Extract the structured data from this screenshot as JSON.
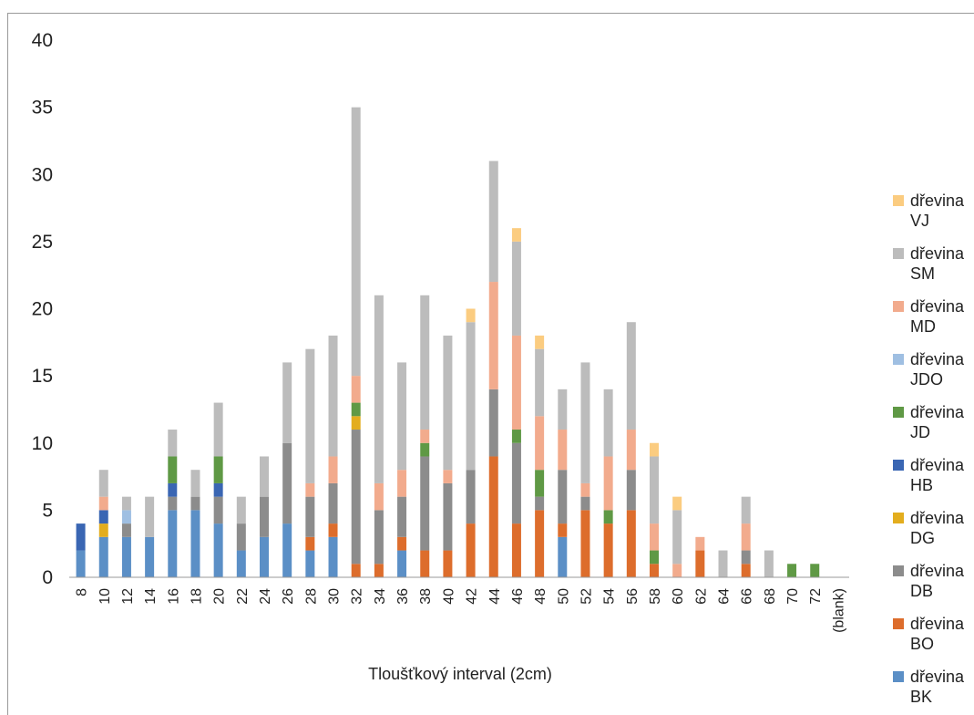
{
  "chart_data": {
    "type": "bar",
    "stacked": true,
    "title": "",
    "xlabel": "Tloušťkový interval (2cm)",
    "ylabel": "",
    "ylim": [
      0,
      40
    ],
    "yticks": [
      "0",
      "5",
      "10",
      "15",
      "20",
      "25",
      "30",
      "35",
      "40"
    ],
    "grid": false,
    "legend_position": "right",
    "categories": [
      "8",
      "10",
      "12",
      "14",
      "16",
      "18",
      "20",
      "22",
      "24",
      "26",
      "28",
      "30",
      "32",
      "34",
      "36",
      "38",
      "40",
      "42",
      "44",
      "46",
      "48",
      "50",
      "52",
      "54",
      "56",
      "58",
      "60",
      "62",
      "64",
      "66",
      "68",
      "70",
      "72",
      "(blank)"
    ],
    "series": [
      {
        "name": "dřevina BK",
        "color": "#5b8fc6",
        "values": [
          2,
          3,
          3,
          3,
          5,
          5,
          4,
          2,
          3,
          4,
          2,
          3,
          0,
          0,
          2,
          0,
          0,
          0,
          0,
          0,
          0,
          3,
          0,
          0,
          0,
          0,
          0,
          0,
          0,
          0,
          0,
          0,
          0,
          0
        ]
      },
      {
        "name": "dřevina BO",
        "color": "#dd6d2c",
        "values": [
          0,
          0,
          0,
          0,
          0,
          0,
          0,
          0,
          0,
          0,
          1,
          1,
          1,
          1,
          1,
          2,
          2,
          4,
          9,
          4,
          5,
          1,
          5,
          4,
          5,
          1,
          0,
          2,
          0,
          1,
          0,
          0,
          0,
          0
        ]
      },
      {
        "name": "dřevina DB",
        "color": "#8c8c8c",
        "values": [
          0,
          0,
          1,
          0,
          1,
          1,
          2,
          2,
          3,
          6,
          3,
          3,
          10,
          4,
          3,
          7,
          5,
          4,
          5,
          6,
          1,
          4,
          1,
          0,
          3,
          0,
          0,
          0,
          0,
          1,
          0,
          0,
          0,
          0
        ]
      },
      {
        "name": "dřevina DG",
        "color": "#e3ad1e",
        "values": [
          0,
          1,
          0,
          0,
          0,
          0,
          0,
          0,
          0,
          0,
          0,
          0,
          1,
          0,
          0,
          0,
          0,
          0,
          0,
          0,
          0,
          0,
          0,
          0,
          0,
          0,
          0,
          0,
          0,
          0,
          0,
          0,
          0,
          0
        ]
      },
      {
        "name": "dřevina HB",
        "color": "#3a66b3",
        "values": [
          2,
          1,
          0,
          0,
          1,
          0,
          1,
          0,
          0,
          0,
          0,
          0,
          0,
          0,
          0,
          0,
          0,
          0,
          0,
          0,
          0,
          0,
          0,
          0,
          0,
          0,
          0,
          0,
          0,
          0,
          0,
          0,
          0,
          0
        ]
      },
      {
        "name": "dřevina JD",
        "color": "#5f9945",
        "values": [
          0,
          0,
          0,
          0,
          2,
          0,
          2,
          0,
          0,
          0,
          0,
          0,
          1,
          0,
          0,
          1,
          0,
          0,
          0,
          1,
          2,
          0,
          0,
          1,
          0,
          1,
          0,
          0,
          0,
          0,
          0,
          1,
          1,
          0
        ]
      },
      {
        "name": "dřevina JDO",
        "color": "#9fbfe2",
        "values": [
          0,
          0,
          1,
          0,
          0,
          0,
          0,
          0,
          0,
          0,
          0,
          0,
          0,
          0,
          0,
          0,
          0,
          0,
          0,
          0,
          0,
          0,
          0,
          0,
          0,
          0,
          0,
          0,
          0,
          0,
          0,
          0,
          0,
          0
        ]
      },
      {
        "name": "dřevina MD",
        "color": "#f2ab8d",
        "values": [
          0,
          1,
          0,
          0,
          0,
          0,
          0,
          0,
          0,
          0,
          1,
          2,
          2,
          2,
          2,
          1,
          1,
          0,
          8,
          7,
          4,
          3,
          1,
          4,
          3,
          2,
          1,
          1,
          0,
          2,
          0,
          0,
          0,
          0
        ]
      },
      {
        "name": "dřevina SM",
        "color": "#bcbcbc",
        "values": [
          0,
          2,
          1,
          3,
          2,
          2,
          4,
          2,
          3,
          6,
          10,
          9,
          20,
          14,
          8,
          10,
          10,
          11,
          9,
          7,
          5,
          3,
          9,
          5,
          8,
          5,
          4,
          0,
          2,
          2,
          2,
          0,
          0,
          0
        ]
      },
      {
        "name": "dřevina VJ",
        "color": "#fbcc80",
        "values": [
          0,
          0,
          0,
          0,
          0,
          0,
          0,
          0,
          0,
          0,
          0,
          0,
          0,
          0,
          0,
          0,
          0,
          1,
          0,
          1,
          1,
          0,
          0,
          0,
          0,
          1,
          1,
          0,
          0,
          0,
          0,
          0,
          0,
          0
        ]
      }
    ]
  }
}
